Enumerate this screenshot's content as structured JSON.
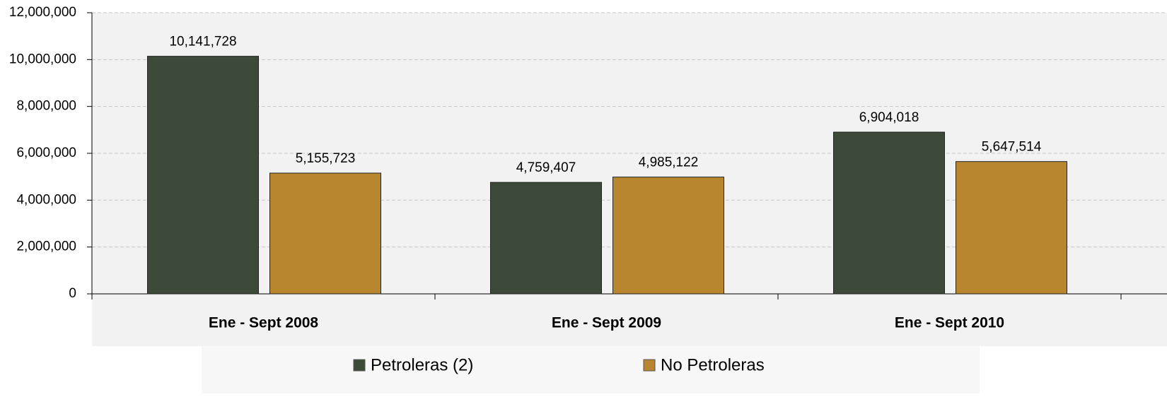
{
  "chart_data": {
    "type": "bar",
    "categories": [
      "Ene - Sept 2008",
      "Ene - Sept 2009",
      "Ene - Sept 2010"
    ],
    "series": [
      {
        "name": "Petroleras (2)",
        "color": "#3d4a3a",
        "values": [
          10141728,
          4759407,
          6904018
        ],
        "value_labels": [
          "10,141,728",
          "4,759,407",
          "6,904,018"
        ]
      },
      {
        "name": "No Petroleras",
        "color": "#b8862e",
        "values": [
          5155723,
          4985122,
          5647514
        ],
        "value_labels": [
          "5,155,723",
          "4,985,122",
          "5,647,514"
        ]
      }
    ],
    "ylim": [
      0,
      12000000
    ],
    "yticks": [
      0,
      {
        "value": 2000000,
        "label": "2,000,000"
      },
      {
        "value": 4000000,
        "label": "4,000,000"
      },
      {
        "value": 6000000,
        "label": "6,000,000"
      },
      {
        "value": 8000000,
        "label": "8,000,000"
      },
      {
        "value": 10000000,
        "label": "10,000,000"
      },
      {
        "value": 12000000,
        "label": "12,000,000"
      }
    ],
    "grid": true,
    "legend": "bottom"
  }
}
